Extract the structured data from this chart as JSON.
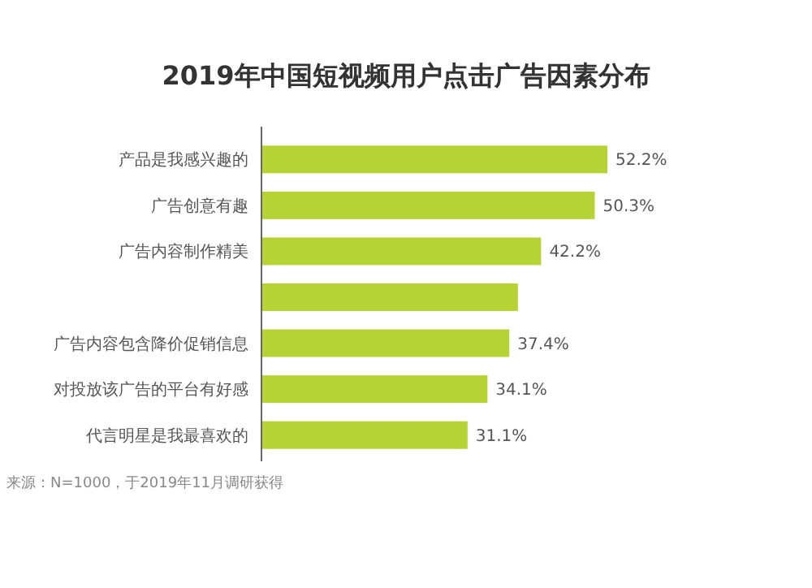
{
  "chart_data": {
    "type": "bar",
    "orientation": "horizontal",
    "title": "2019年中国短视频用户点击广告因素分布",
    "categories": [
      "产品是我感兴趣的",
      "广告创意有趣",
      "广告内容制作精美",
      null,
      "广告内容包含降价促销信息",
      "对投放该广告的平台有好感",
      "代言明星是我最喜欢的"
    ],
    "values": [
      52.2,
      50.3,
      42.2,
      38.7,
      37.4,
      34.1,
      31.1
    ],
    "value_labels": [
      "52.2%",
      "50.3%",
      "42.2%",
      null,
      "37.4%",
      "34.1%",
      "31.1%"
    ],
    "color": "#b5d334",
    "annotations": [
      "来源：N=1000，于2019年11月调研获得"
    ]
  }
}
